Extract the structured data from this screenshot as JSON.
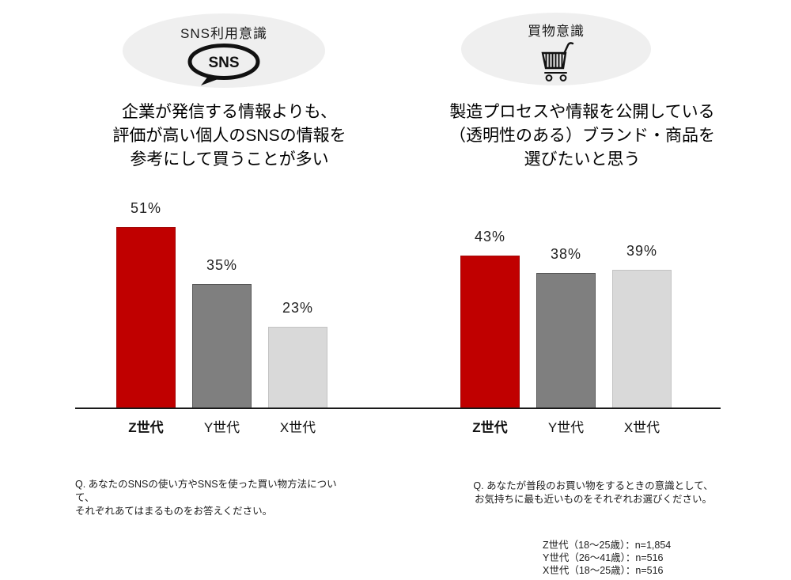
{
  "canvas": {
    "bg": "#ffffff"
  },
  "bar_colors": [
    "#c00000",
    "#7f7f7f",
    "#d9d9d9"
  ],
  "bar_border_colors": [
    "#a30808",
    "#565656",
    "#c3c3c3"
  ],
  "badge_bg": "#efefef",
  "axis_color": "#1a1a1a",
  "chart_data": [
    {
      "type": "bar",
      "badge_label": "SNS利用意識",
      "icon": "sns-speech-bubble-icon",
      "icon_label": "SNS",
      "statement_lines": [
        "企業が発信する情報よりも、",
        "評価が高い個人のSNSの情報を",
        "参考にして買うことが多い"
      ],
      "categories": [
        "Z世代",
        "Y世代",
        "X世代"
      ],
      "values": [
        51,
        35,
        23
      ],
      "value_labels": [
        "51%",
        "35%",
        "23%"
      ],
      "unit": "%",
      "ylim": [
        0,
        60
      ],
      "grid": false,
      "question_lines": [
        "Q. あなたのSNSの使い方やSNSを使った買い物方法につい",
        "て、",
        "それぞれあてはまるものをお答えください。"
      ]
    },
    {
      "type": "bar",
      "badge_label": "買物意識",
      "icon": "shopping-cart-icon",
      "statement_lines": [
        "製造プロセスや情報を公開している",
        "（透明性のある）ブランド・商品を",
        "選びたいと思う"
      ],
      "categories": [
        "Z世代",
        "Y世代",
        "X世代"
      ],
      "values": [
        43,
        38,
        39
      ],
      "value_labels": [
        "43%",
        "38%",
        "39%"
      ],
      "unit": "%",
      "ylim": [
        0,
        60
      ],
      "grid": false,
      "question_lines": [
        "Q. あなたが普段のお買い物をするときの意識として、",
        "お気持ちに最も近いものをそれぞれお選びください。"
      ]
    }
  ],
  "footer": {
    "sample_lines": [
      "Z世代（18～25歳）：n=1,854",
      "Y世代（26～41歳）：n=516",
      "X世代（18～25歳）：n=516"
    ]
  }
}
